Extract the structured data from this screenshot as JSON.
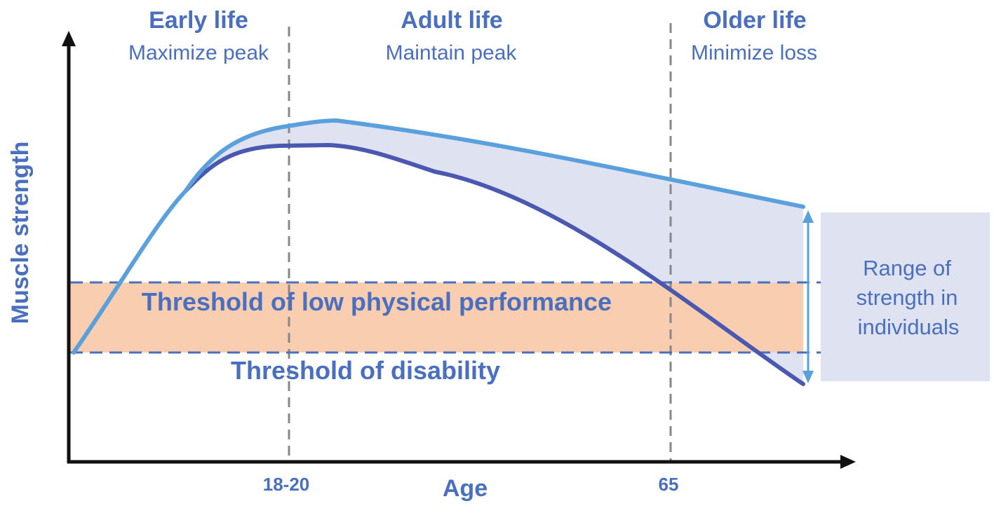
{
  "colors": {
    "primary_text": "#4a6fbf",
    "upper_curve": "#5aa0dc",
    "lower_curve": "#4a58b0",
    "range_fill": "#dfe2f1",
    "threshold_band": "#f8cdb0",
    "threshold_line": "#4a6fbf",
    "divider": "#888888",
    "axis": "#111111",
    "range_arrow": "#5aa0dc",
    "range_box": "#dfe2f1"
  },
  "stages": [
    {
      "title": "Early life",
      "subtitle": "Maximize peak"
    },
    {
      "title": "Adult life",
      "subtitle": "Maintain peak"
    },
    {
      "title": "Older life",
      "subtitle": "Minimize loss"
    }
  ],
  "thresholds": {
    "low_performance": "Threshold of low physical performance",
    "disability": "Threshold of disability"
  },
  "axes": {
    "y_label": "Muscle strength",
    "x_label": "Age",
    "x_ticks": [
      "18-20",
      "65"
    ]
  },
  "range_box": {
    "lines": [
      "Range of",
      "strength in",
      "individuals"
    ]
  },
  "icons": {
    "y_arrow": "arrow-up-icon",
    "x_arrow": "arrow-right-icon",
    "range_arrow": "double-arrow-vertical-icon"
  }
}
